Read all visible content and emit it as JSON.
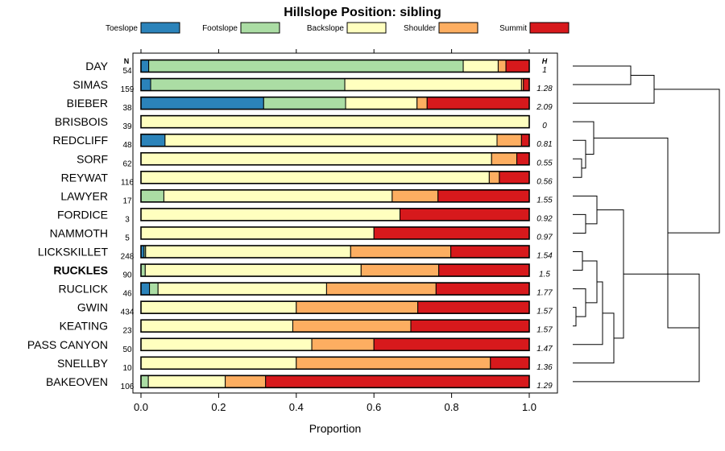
{
  "chart_data": {
    "type": "bar",
    "stacked": true,
    "orientation": "horizontal",
    "title": "Hillslope Position: sibling",
    "xlabel": "Proportion",
    "xlim": [
      0,
      1
    ],
    "xticks": [
      "0.0",
      "0.2",
      "0.4",
      "0.6",
      "0.8",
      "1.0"
    ],
    "n_header": "N",
    "h_header": "H",
    "legend_position": "top",
    "series": [
      {
        "name": "Toeslope",
        "color": "#2B83BA"
      },
      {
        "name": "Footslope",
        "color": "#ABDDA4"
      },
      {
        "name": "Backslope",
        "color": "#FFFFBF"
      },
      {
        "name": "Shoulder",
        "color": "#FDAE61"
      },
      {
        "name": "Summit",
        "color": "#D7191C"
      }
    ],
    "rows": [
      {
        "label": "DAY",
        "n": "54",
        "h": "1",
        "bold": false,
        "values": [
          0.02,
          0.81,
          0.09,
          0.02,
          0.06
        ]
      },
      {
        "label": "SIMAS",
        "n": "159",
        "h": "1.28",
        "bold": false,
        "values": [
          0.025,
          0.5,
          0.455,
          0.005,
          0.015
        ]
      },
      {
        "label": "BIEBER",
        "n": "38",
        "h": "2.09",
        "bold": false,
        "values": [
          0.316,
          0.211,
          0.184,
          0.026,
          0.263
        ]
      },
      {
        "label": "BRISBOIS",
        "n": "39",
        "h": "0",
        "bold": false,
        "values": [
          0,
          0,
          1.0,
          0,
          0
        ]
      },
      {
        "label": "REDCLIFF",
        "n": "48",
        "h": "0.81",
        "bold": false,
        "values": [
          0.062,
          0,
          0.855,
          0.063,
          0.02
        ]
      },
      {
        "label": "SORF",
        "n": "62",
        "h": "0.55",
        "bold": false,
        "values": [
          0,
          0,
          0.903,
          0.065,
          0.032
        ]
      },
      {
        "label": "REYWAT",
        "n": "116",
        "h": "0.56",
        "bold": false,
        "values": [
          0,
          0,
          0.897,
          0.026,
          0.077
        ]
      },
      {
        "label": "LAWYER",
        "n": "17",
        "h": "1.55",
        "bold": false,
        "values": [
          0,
          0.059,
          0.588,
          0.118,
          0.235
        ]
      },
      {
        "label": "FORDICE",
        "n": "3",
        "h": "0.92",
        "bold": false,
        "values": [
          0,
          0,
          0.667,
          0,
          0.333
        ]
      },
      {
        "label": "NAMMOTH",
        "n": "5",
        "h": "0.97",
        "bold": false,
        "values": [
          0,
          0,
          0.6,
          0,
          0.4
        ]
      },
      {
        "label": "LICKSKILLET",
        "n": "248",
        "h": "1.54",
        "bold": false,
        "values": [
          0.008,
          0.004,
          0.528,
          0.258,
          0.202
        ]
      },
      {
        "label": "RUCKLES",
        "n": "90",
        "h": "1.5",
        "bold": true,
        "values": [
          0,
          0.011,
          0.556,
          0.2,
          0.233
        ]
      },
      {
        "label": "RUCLICK",
        "n": "46",
        "h": "1.77",
        "bold": false,
        "values": [
          0.022,
          0.022,
          0.434,
          0.282,
          0.24
        ]
      },
      {
        "label": "GWIN",
        "n": "434",
        "h": "1.57",
        "bold": false,
        "values": [
          0,
          0,
          0.4,
          0.313,
          0.287
        ]
      },
      {
        "label": "KEATING",
        "n": "23",
        "h": "1.57",
        "bold": false,
        "values": [
          0,
          0,
          0.391,
          0.304,
          0.305
        ]
      },
      {
        "label": "PASS CANYON",
        "n": "50",
        "h": "1.47",
        "bold": false,
        "values": [
          0,
          0,
          0.44,
          0.16,
          0.4
        ]
      },
      {
        "label": "SNELLBY",
        "n": "10",
        "h": "1.36",
        "bold": false,
        "values": [
          0,
          0,
          0.4,
          0.5,
          0.1
        ]
      },
      {
        "label": "BAKEOVEN",
        "n": "106",
        "h": "1.29",
        "bold": false,
        "values": [
          0,
          0.019,
          0.198,
          0.104,
          0.679
        ]
      }
    ]
  }
}
